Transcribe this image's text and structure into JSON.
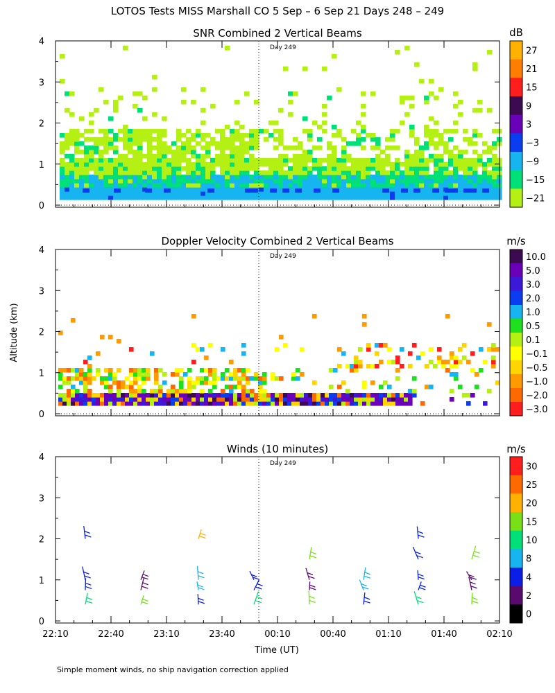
{
  "figure": {
    "title": "LOTOS Tests MISS Marshall CO   5 Sep –  6 Sep 21 Days 248 – 249",
    "ylabel": "Altitude (km)",
    "xlabel": "Time (UT)",
    "footnote": "Simple moment winds, no ship navigation correction applied",
    "day_marker": "Day 249",
    "x_ticks": [
      "22:10",
      "22:40",
      "23:10",
      "23:40",
      "00:10",
      "00:40",
      "01:10",
      "01:40",
      "02:10"
    ],
    "y_ticks": [
      "0",
      "1",
      "2",
      "3",
      "4"
    ]
  },
  "chart_data": [
    {
      "type": "heatmap",
      "title": "SNR Combined 2 Vertical Beams",
      "ylim": [
        0,
        4
      ],
      "units": "dB",
      "colorbar_labels": [
        "27",
        "21",
        "15",
        "9",
        "3",
        "−3",
        "−9",
        "−15",
        "−21"
      ],
      "colorbar_colors": [
        "#ffb000",
        "#ff7d00",
        "#ff1e1e",
        "#3c0a50",
        "#6a00b8",
        "#0a3cf0",
        "#16b4f0",
        "#00e078",
        "#b4f014"
      ]
    },
    {
      "type": "heatmap",
      "title": "Doppler Velocity Combined 2 Vertical Beams",
      "ylim": [
        0,
        4
      ],
      "units": "m/s",
      "colorbar_labels": [
        "10.0",
        "5.0",
        "3.0",
        "2.0",
        "1.0",
        "0.5",
        "0.1",
        "−0.1",
        "−0.5",
        "−1.0",
        "−2.0",
        "−3.0"
      ],
      "colorbar_colors": [
        "#3c0a50",
        "#6a00b8",
        "#3c18d8",
        "#0a3cf0",
        "#16b4f0",
        "#1ee01e",
        "#b4f014",
        "#ffff00",
        "#ffd400",
        "#ff9a00",
        "#ff6a00",
        "#ff1e1e"
      ]
    },
    {
      "type": "scatter",
      "title": "Winds (10 minutes)",
      "ylim": [
        0,
        4
      ],
      "units": "m/s",
      "colorbar_labels": [
        "30",
        "25",
        "20",
        "15",
        "10",
        "8",
        "4",
        "2",
        "0"
      ],
      "colorbar_colors": [
        "#ff1e1e",
        "#ff6a00",
        "#ffb000",
        "#78e014",
        "#00e078",
        "#16b4f0",
        "#0a1ee6",
        "#5a0a6e",
        "#000000"
      ]
    }
  ],
  "colors": {
    "guide": "#000000"
  }
}
